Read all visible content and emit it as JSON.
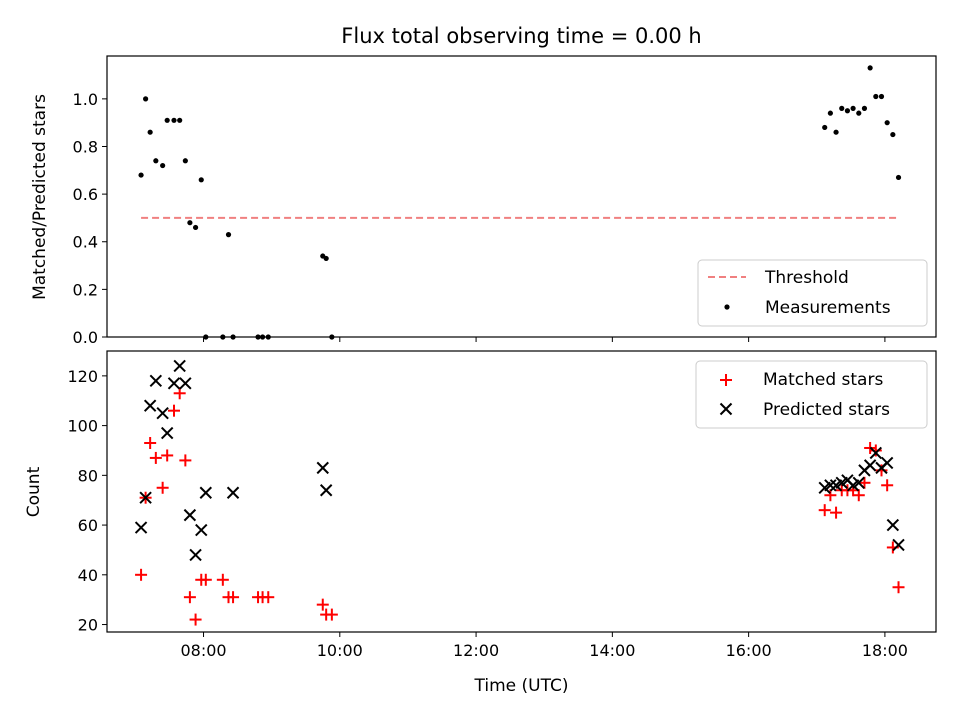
{
  "figure": {
    "title": "Flux total observing time = 0.00 h"
  },
  "chart_data": [
    {
      "type": "scatter",
      "ylabel": "Matched/Predicted stars",
      "xlim": [
        "06:35",
        "18:45"
      ],
      "ylim": [
        0,
        1.18
      ],
      "x_ticks": [
        "08:00",
        "10:00",
        "12:00",
        "14:00",
        "16:00",
        "18:00"
      ],
      "y_ticks": [
        "0.0",
        "0.2",
        "0.4",
        "0.6",
        "0.8",
        "1.0"
      ],
      "legend_position": "lower-right",
      "threshold": {
        "name": "Threshold",
        "value": 0.5,
        "x_range": [
          "07:05",
          "18:12"
        ],
        "color": "#f08080"
      },
      "series": [
        {
          "name": "Measurements",
          "color": "#000000",
          "x": [
            "07:05",
            "07:09",
            "07:13",
            "07:18",
            "07:24",
            "07:28",
            "07:34",
            "07:39",
            "07:44",
            "07:48",
            "07:53",
            "07:58",
            "08:02",
            "08:17",
            "08:22",
            "08:26",
            "08:48",
            "08:52",
            "08:57",
            "09:45",
            "09:48",
            "09:53",
            "17:07",
            "17:12",
            "17:17",
            "17:22",
            "17:27",
            "17:32",
            "17:37",
            "17:42",
            "17:47",
            "17:52",
            "17:57",
            "18:02",
            "18:07",
            "18:12"
          ],
          "y": [
            0.68,
            1.0,
            0.86,
            0.74,
            0.72,
            0.91,
            0.91,
            0.91,
            0.74,
            0.48,
            0.46,
            0.66,
            0.0,
            0.0,
            0.43,
            0.0,
            0.0,
            0.0,
            0.0,
            0.34,
            0.33,
            0.0,
            0.88,
            0.94,
            0.86,
            0.96,
            0.95,
            0.96,
            0.94,
            0.96,
            1.13,
            1.01,
            1.01,
            0.9,
            0.85,
            0.67
          ]
        }
      ]
    },
    {
      "type": "scatter",
      "xlabel": "Time (UTC)",
      "ylabel": "Count",
      "xlim": [
        "06:35",
        "18:45"
      ],
      "ylim": [
        17,
        130
      ],
      "x_ticks": [
        "08:00",
        "10:00",
        "12:00",
        "14:00",
        "16:00",
        "18:00"
      ],
      "y_ticks": [
        "20",
        "40",
        "60",
        "80",
        "100",
        "120"
      ],
      "legend_position": "upper-right",
      "series": [
        {
          "name": "Matched stars",
          "marker": "plus",
          "color": "#ff0000",
          "x": [
            "07:05",
            "07:09",
            "07:13",
            "07:18",
            "07:24",
            "07:28",
            "07:34",
            "07:39",
            "07:44",
            "07:48",
            "07:53",
            "07:58",
            "08:02",
            "08:17",
            "08:22",
            "08:26",
            "08:48",
            "08:52",
            "08:57",
            "09:45",
            "09:48",
            "09:53",
            "17:07",
            "17:12",
            "17:17",
            "17:22",
            "17:27",
            "17:32",
            "17:37",
            "17:42",
            "17:47",
            "17:52",
            "17:57",
            "18:02",
            "18:07",
            "18:12"
          ],
          "y": [
            40,
            71,
            93,
            87,
            75,
            88,
            106,
            113,
            86,
            31,
            22,
            38,
            38,
            38,
            31,
            31,
            31,
            31,
            31,
            28,
            24,
            24,
            66,
            72,
            65,
            74,
            74,
            74,
            72,
            77,
            91,
            90,
            82,
            76,
            51,
            35
          ]
        },
        {
          "name": "Predicted stars",
          "marker": "x",
          "color": "#000000",
          "x": [
            "07:05",
            "07:09",
            "07:13",
            "07:18",
            "07:24",
            "07:28",
            "07:34",
            "07:39",
            "07:44",
            "07:48",
            "07:53",
            "07:58",
            "08:02",
            "08:26",
            "09:45",
            "09:48",
            "17:07",
            "17:12",
            "17:17",
            "17:22",
            "17:27",
            "17:32",
            "17:37",
            "17:42",
            "17:47",
            "17:52",
            "17:57",
            "18:02",
            "18:07",
            "18:12"
          ],
          "y": [
            59,
            71,
            108,
            118,
            105,
            97,
            117,
            124,
            117,
            64,
            48,
            58,
            73,
            73,
            83,
            74,
            75,
            76,
            76,
            77,
            78,
            76,
            77,
            82,
            84,
            89,
            83,
            85,
            60,
            52
          ]
        }
      ]
    }
  ]
}
